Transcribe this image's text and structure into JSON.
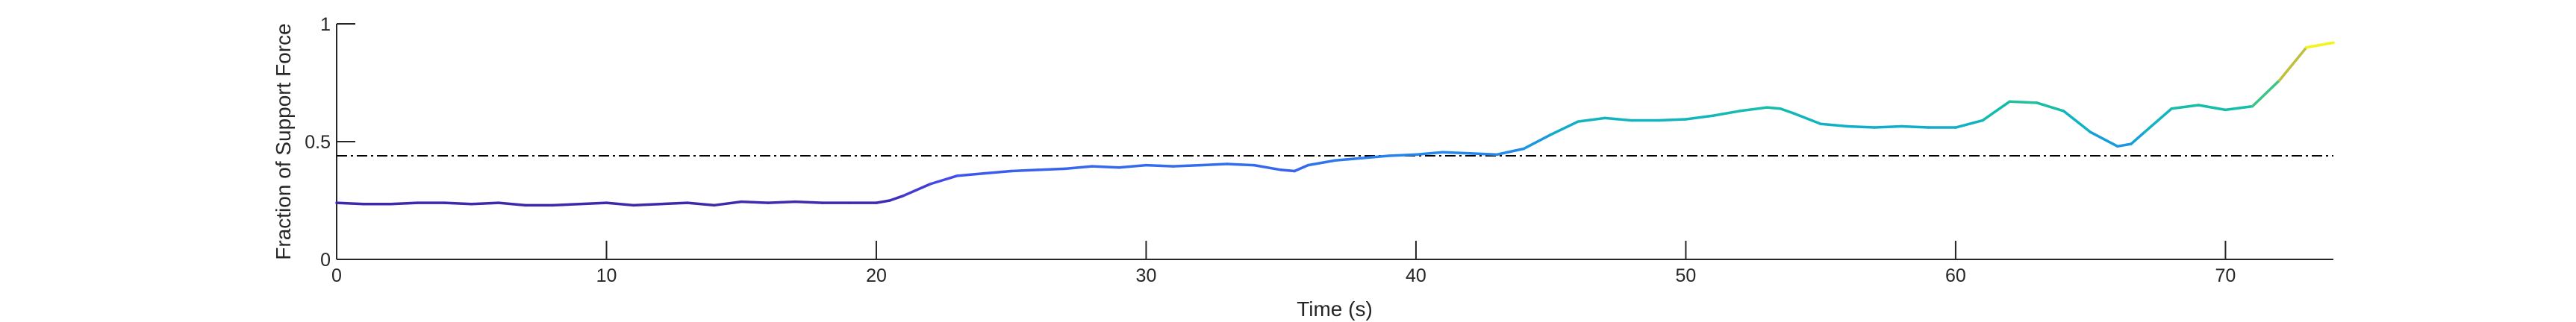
{
  "chart_data": {
    "type": "line",
    "title": "",
    "xlabel": "Time (s)",
    "ylabel": "Fraction of Support Force",
    "xlim": [
      0,
      74
    ],
    "ylim": [
      0,
      1
    ],
    "xticks": [
      0,
      10,
      20,
      30,
      40,
      50,
      60,
      70
    ],
    "yticks": [
      0,
      0.5,
      1
    ],
    "ytick_labels": [
      "0",
      "0.5",
      "1"
    ],
    "grid": false,
    "legend": "none",
    "colormap": "parula",
    "reference_line": {
      "y": 0.44,
      "style": "dash-dot",
      "color": "#000000"
    },
    "series": [
      {
        "x": [
          0,
          1,
          2,
          3,
          4,
          5,
          6,
          7,
          8,
          9,
          10,
          11,
          12,
          13,
          14,
          15,
          16,
          17,
          18,
          19,
          20,
          20.5,
          21,
          22,
          23,
          24,
          25,
          26,
          27,
          28,
          29,
          30,
          31,
          32,
          33,
          34,
          35,
          35.5,
          36,
          37,
          38,
          39,
          40,
          41,
          42,
          43,
          44,
          45,
          46,
          47,
          48,
          49,
          50,
          51,
          52,
          53,
          53.5,
          54,
          55,
          56,
          57,
          58,
          59,
          60,
          61,
          62,
          63,
          64,
          65,
          66,
          66.5,
          67,
          68,
          69,
          70,
          71,
          72,
          73,
          74
        ],
        "y": [
          0.24,
          0.235,
          0.235,
          0.24,
          0.24,
          0.235,
          0.24,
          0.23,
          0.23,
          0.235,
          0.24,
          0.23,
          0.235,
          0.24,
          0.23,
          0.245,
          0.24,
          0.245,
          0.24,
          0.24,
          0.24,
          0.25,
          0.27,
          0.32,
          0.355,
          0.365,
          0.375,
          0.38,
          0.385,
          0.395,
          0.39,
          0.4,
          0.395,
          0.4,
          0.405,
          0.4,
          0.38,
          0.375,
          0.4,
          0.42,
          0.43,
          0.44,
          0.445,
          0.455,
          0.45,
          0.445,
          0.47,
          0.53,
          0.585,
          0.6,
          0.59,
          0.59,
          0.595,
          0.61,
          0.63,
          0.645,
          0.64,
          0.62,
          0.575,
          0.565,
          0.56,
          0.565,
          0.56,
          0.56,
          0.59,
          0.67,
          0.665,
          0.63,
          0.54,
          0.48,
          0.49,
          0.54,
          0.64,
          0.655,
          0.635,
          0.65,
          0.76,
          0.9,
          0.92
        ]
      }
    ]
  }
}
